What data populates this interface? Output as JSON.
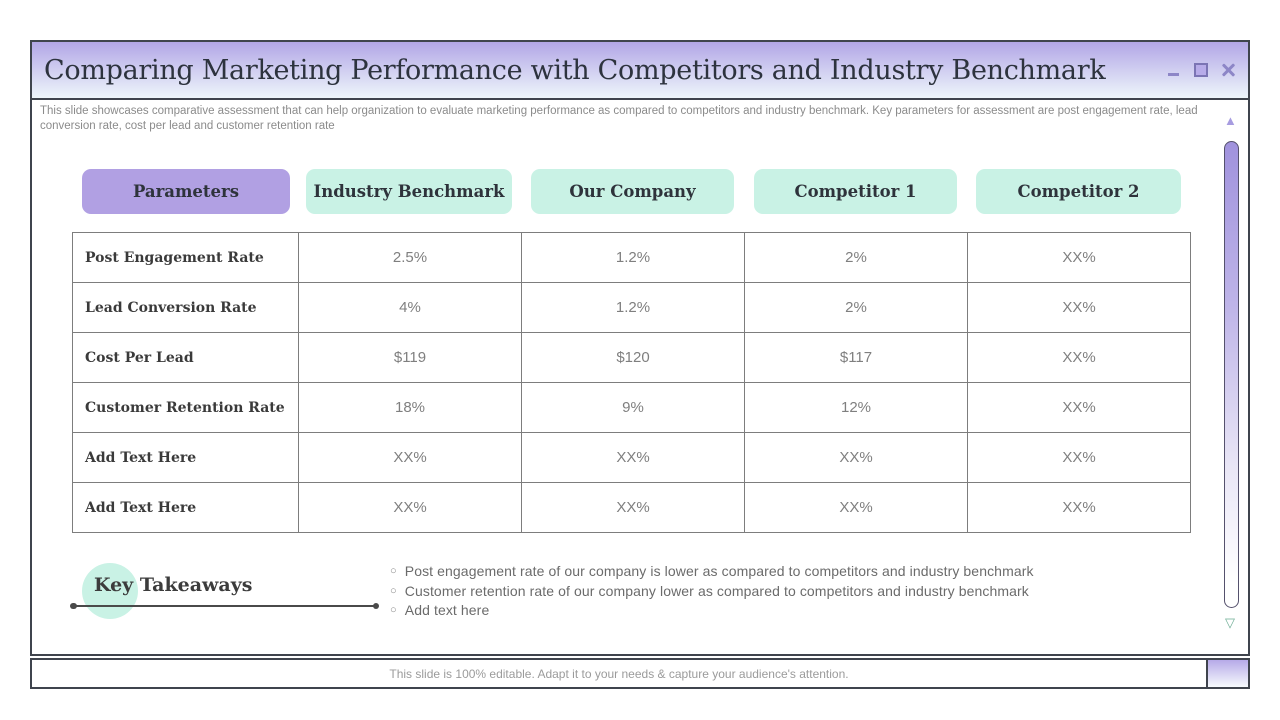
{
  "window": {
    "title": "Comparing Marketing Performance with Competitors and Industry Benchmark",
    "description": "This slide showcases comparative assessment that can help organization to evaluate marketing performance as compared to competitors and industry benchmark. Key parameters for assessment are post engagement rate, lead conversion rate, cost per lead and customer retention rate"
  },
  "table": {
    "headers": [
      "Parameters",
      "Industry Benchmark",
      "Our Company",
      "Competitor 1",
      "Competitor 2"
    ],
    "rows": [
      {
        "label": "Post Engagement Rate",
        "values": [
          "2.5%",
          "1.2%",
          "2%",
          "XX%"
        ]
      },
      {
        "label": "Lead Conversion Rate",
        "values": [
          "4%",
          "1.2%",
          "2%",
          "XX%"
        ]
      },
      {
        "label": "Cost Per Lead",
        "values": [
          "$119",
          "$120",
          "$117",
          "XX%"
        ]
      },
      {
        "label": "Customer Retention Rate",
        "values": [
          "18%",
          "9%",
          "12%",
          "XX%"
        ]
      },
      {
        "label": "Add Text Here",
        "values": [
          "XX%",
          "XX%",
          "XX%",
          "XX%"
        ]
      },
      {
        "label": "Add Text Here",
        "values": [
          "XX%",
          "XX%",
          "XX%",
          "XX%"
        ]
      }
    ]
  },
  "key_takeaways": {
    "title": "Key Takeaways",
    "marker": "○",
    "bullets": [
      "Post engagement rate of our company is lower as compared to competitors and industry benchmark",
      "Customer retention rate of our company lower as compared to competitors and industry benchmark",
      "Add text here"
    ]
  },
  "footer": {
    "note": "This slide is 100% editable. Adapt it to your needs & capture your audience's attention."
  },
  "icons": {
    "scroll_up": "▲",
    "scroll_down": "▽"
  },
  "colors": {
    "accent_purple": "#b1a0e3",
    "accent_mint": "#c9f2e5",
    "titlebar_top": "#b2a6e6",
    "titlebar_bottom": "#eef6fb",
    "border_dark": "#3f444d"
  }
}
